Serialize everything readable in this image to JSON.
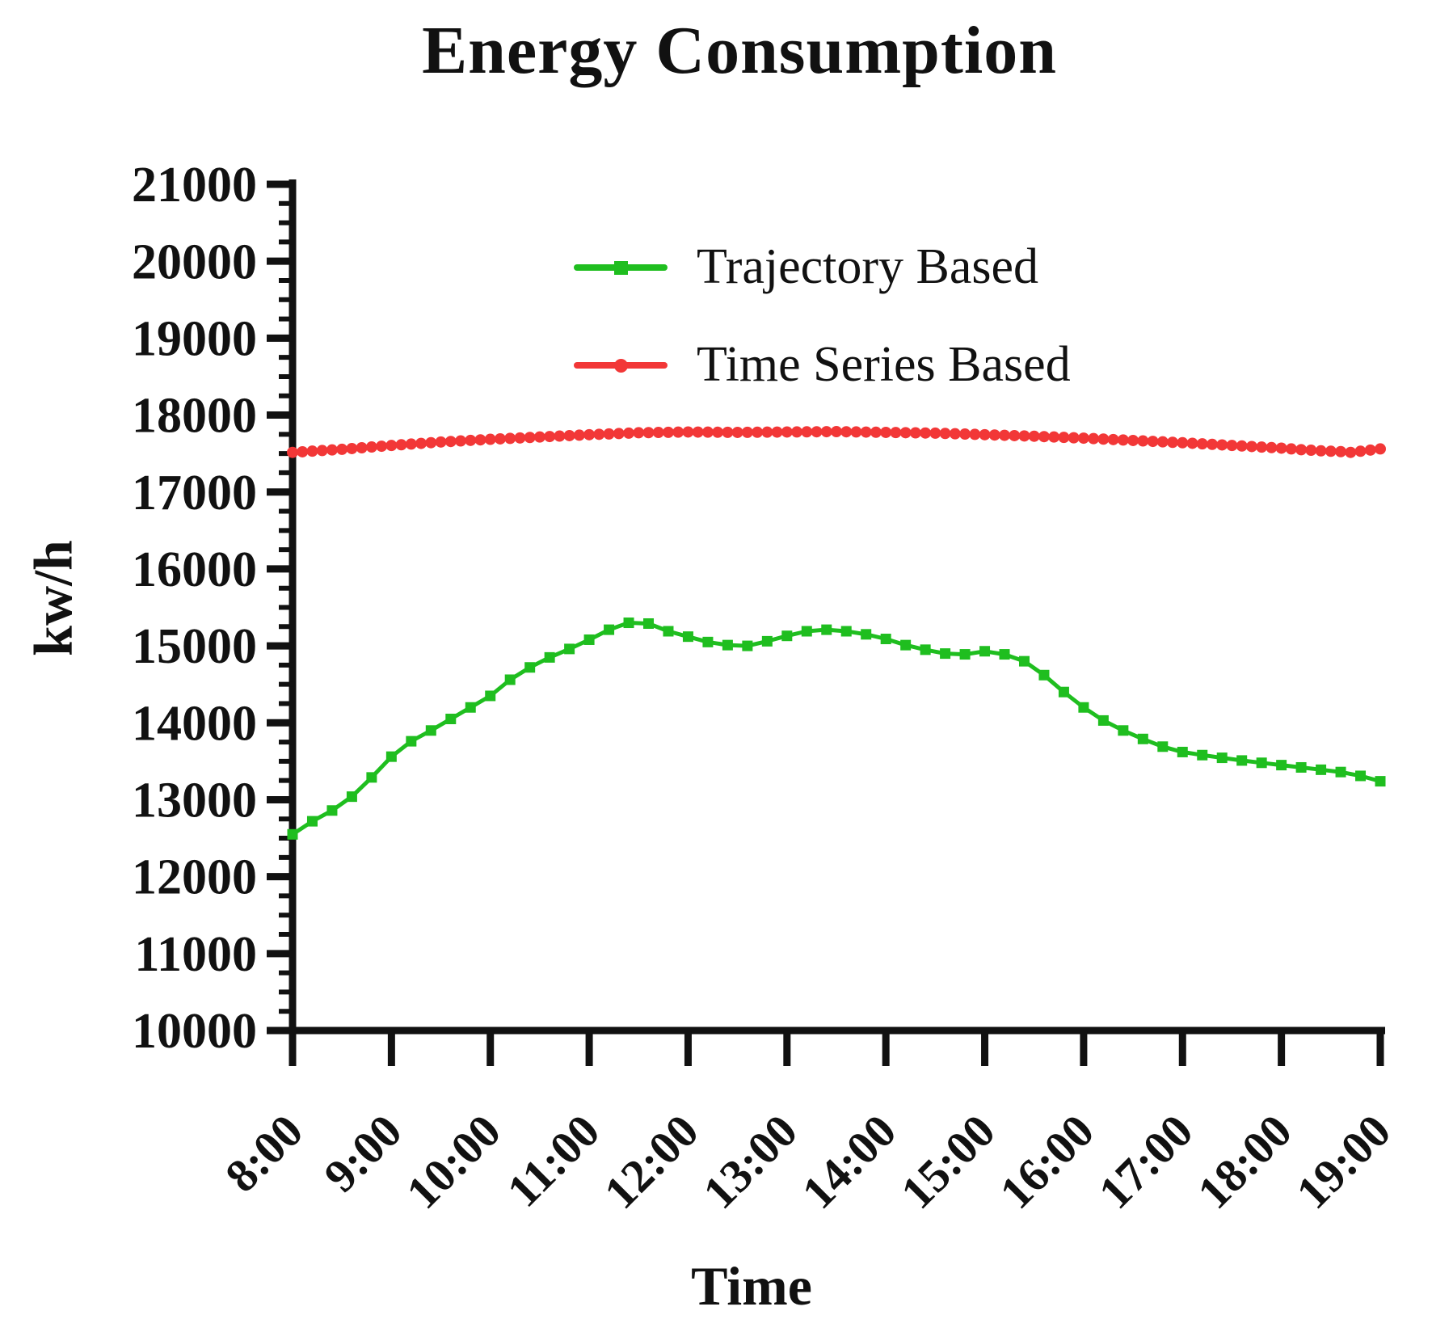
{
  "title": "Energy Consumption",
  "axes": {
    "y_label": "kw/h",
    "x_label": "Time",
    "y_min": 10000,
    "y_max": 21000,
    "y_major_step": 1000,
    "y_minor_step": 250,
    "y_tick_labels": [
      "21000",
      "20000",
      "19000",
      "18000",
      "17000",
      "16000",
      "15000",
      "14000",
      "13000",
      "12000",
      "11000",
      "10000"
    ],
    "x_tick_labels": [
      "8:00",
      "9:00",
      "10:00",
      "11:00",
      "12:00",
      "13:00",
      "14:00",
      "15:00",
      "16:00",
      "17:00",
      "18:00",
      "19:00"
    ]
  },
  "chart_data": {
    "type": "line",
    "title": "Energy Consumption",
    "xlabel": "Time",
    "ylabel": "kw/h",
    "ylim": [
      10000,
      21000
    ],
    "x_range_hours": [
      8,
      19
    ],
    "grid": false,
    "legend_position": "inside-top",
    "series": [
      {
        "name": "Trajectory Based",
        "color": "#1fbe1f",
        "marker": "square",
        "start_time": "8:00",
        "interval_minutes": 12,
        "values": [
          12550,
          12720,
          12860,
          13040,
          13290,
          13560,
          13760,
          13900,
          14050,
          14200,
          14350,
          14560,
          14720,
          14850,
          14960,
          15080,
          15210,
          15300,
          15290,
          15190,
          15120,
          15050,
          15010,
          15000,
          15060,
          15130,
          15190,
          15210,
          15190,
          15150,
          15090,
          15010,
          14950,
          14900,
          14890,
          14930,
          14890,
          14800,
          14620,
          14400,
          14200,
          14030,
          13900,
          13790,
          13690,
          13620,
          13580,
          13545,
          13510,
          13480,
          13450,
          13420,
          13390,
          13360,
          13310,
          13240
        ]
      },
      {
        "name": "Time Series Based",
        "color": "#f23737",
        "marker": "circle",
        "start_time": "8:00",
        "interval_minutes": 6,
        "values": [
          17515,
          17523,
          17531,
          17539,
          17547,
          17555,
          17565,
          17575,
          17585,
          17595,
          17605,
          17614,
          17623,
          17632,
          17641,
          17650,
          17657,
          17664,
          17671,
          17678,
          17685,
          17691,
          17697,
          17703,
          17709,
          17715,
          17721,
          17727,
          17733,
          17739,
          17745,
          17750,
          17755,
          17760,
          17765,
          17770,
          17772,
          17774,
          17776,
          17778,
          17780,
          17779,
          17778,
          17777,
          17776,
          17775,
          17776,
          17777,
          17778,
          17779,
          17780,
          17781,
          17782,
          17783,
          17784,
          17785,
          17783,
          17781,
          17779,
          17777,
          17775,
          17773,
          17771,
          17769,
          17767,
          17765,
          17761,
          17757,
          17753,
          17749,
          17745,
          17741,
          17737,
          17733,
          17729,
          17725,
          17720,
          17715,
          17710,
          17705,
          17700,
          17694,
          17688,
          17682,
          17676,
          17670,
          17664,
          17658,
          17652,
          17646,
          17640,
          17633,
          17626,
          17619,
          17612,
          17605,
          17598,
          17591,
          17584,
          17577,
          17570,
          17560,
          17550,
          17543,
          17535,
          17530,
          17525,
          17515,
          17530,
          17545,
          17560
        ]
      }
    ]
  }
}
